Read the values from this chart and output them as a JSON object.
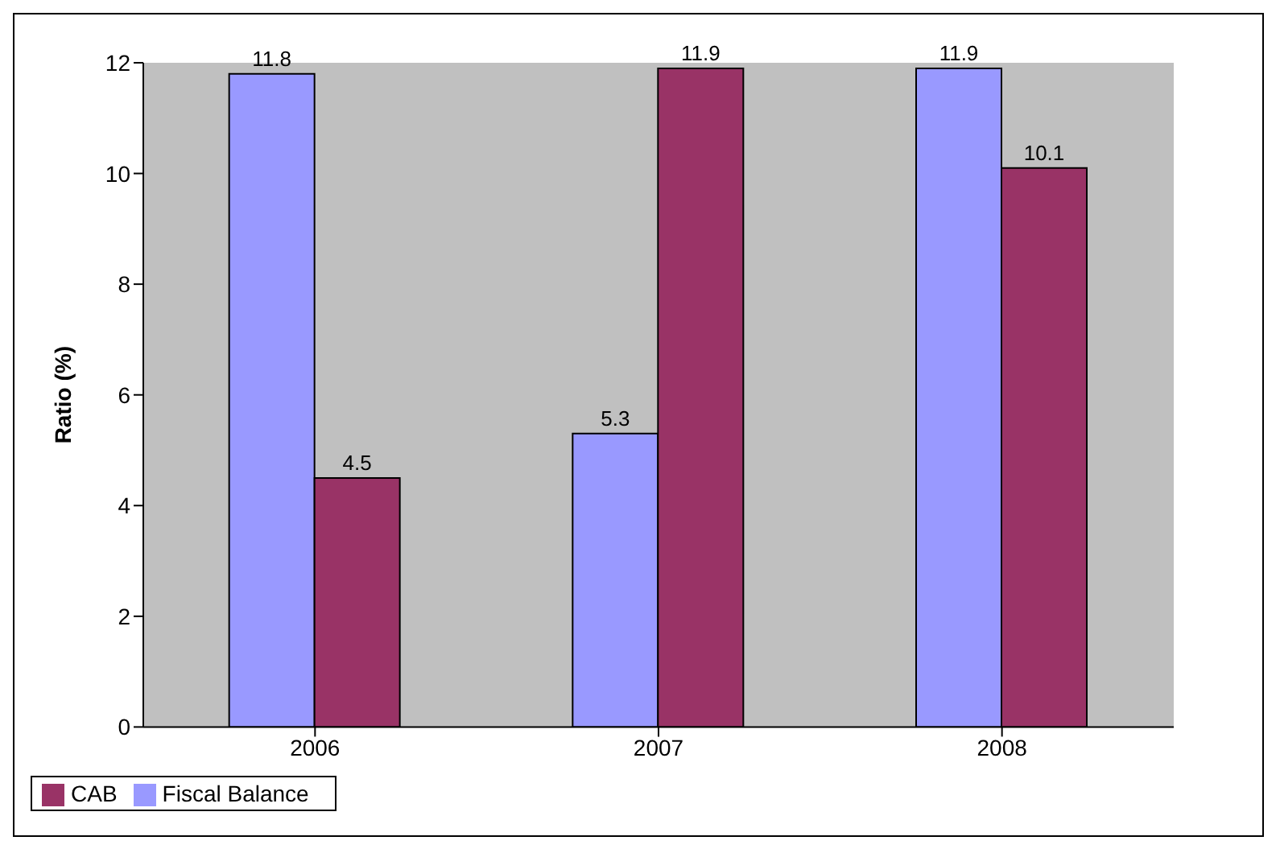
{
  "chart_data": {
    "type": "bar",
    "ylabel": "Ratio (%)",
    "categories": [
      "2006",
      "2007",
      "2008"
    ],
    "series": [
      {
        "name": "Fiscal Balance",
        "color": "#9999ff",
        "values": [
          11.8,
          5.3,
          11.9
        ]
      },
      {
        "name": "CAB",
        "color": "#993366",
        "values": [
          4.5,
          11.9,
          10.1
        ]
      }
    ],
    "ylim": [
      0,
      12
    ],
    "yticks": [
      0,
      2,
      4,
      6,
      8,
      10,
      12
    ],
    "data_labels": true,
    "legend": "bottom left",
    "grid": false
  }
}
